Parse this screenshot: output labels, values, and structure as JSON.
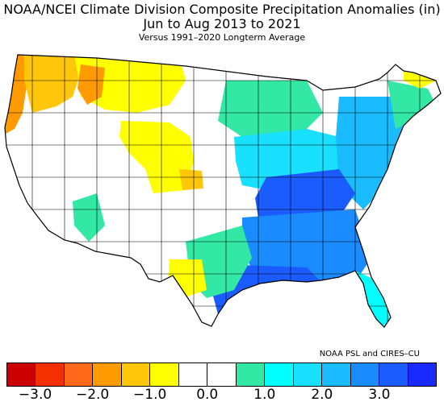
{
  "title_line_1": "NOAA/NCEI Climate Division Composite Precipitation Anomalies (in)",
  "title_line_2": "Jun to Aug 2013 to 2021",
  "subtitle": "Versus 1991–2020 Longterm Average",
  "credit": "NOAA PSL and CIRES–CU",
  "legend": {
    "colors": [
      "#cc0000",
      "#f42f00",
      "#ff6a1a",
      "#ff9a00",
      "#ffc60a",
      "#ffff00",
      "#ffffff",
      "#ffffff",
      "#33e8a5",
      "#00ffff",
      "#1ae0ff",
      "#1abcff",
      "#1a8cff",
      "#1a5cff",
      "#1a2aff"
    ],
    "ticks": [
      "−3.0",
      "−2.0",
      "−1.0",
      "0.0",
      "1.0",
      "2.0",
      "3.0"
    ]
  },
  "map": {
    "regions": [
      {
        "name": "pacific-nw-coast",
        "color": "#ff9a00"
      },
      {
        "name": "washington-inland",
        "color": "#ffc60a"
      },
      {
        "name": "idaho-montana",
        "color": "#ffff00"
      },
      {
        "name": "western-montana",
        "color": "#ff9a00"
      },
      {
        "name": "wyoming-dakotas",
        "color": "#ffff00"
      },
      {
        "name": "kansas-patch",
        "color": "#ffc60a"
      },
      {
        "name": "great-lakes",
        "color": "#33e8a5"
      },
      {
        "name": "upper-midwest",
        "color": "#1ae0ff"
      },
      {
        "name": "mid-atlantic",
        "color": "#1abcff"
      },
      {
        "name": "tennessee-valley",
        "color": "#1a5cff"
      },
      {
        "name": "southeast",
        "color": "#1a8cff"
      },
      {
        "name": "gulf-coast",
        "color": "#1a5cff"
      },
      {
        "name": "texas-central",
        "color": "#33e8a5"
      },
      {
        "name": "west-texas",
        "color": "#ffff00"
      },
      {
        "name": "new-mexico",
        "color": "#33e8a5"
      },
      {
        "name": "florida",
        "color": "#00ffff"
      },
      {
        "name": "new-england",
        "color": "#33e8a5"
      },
      {
        "name": "maine-north",
        "color": "#ffff00"
      }
    ]
  }
}
